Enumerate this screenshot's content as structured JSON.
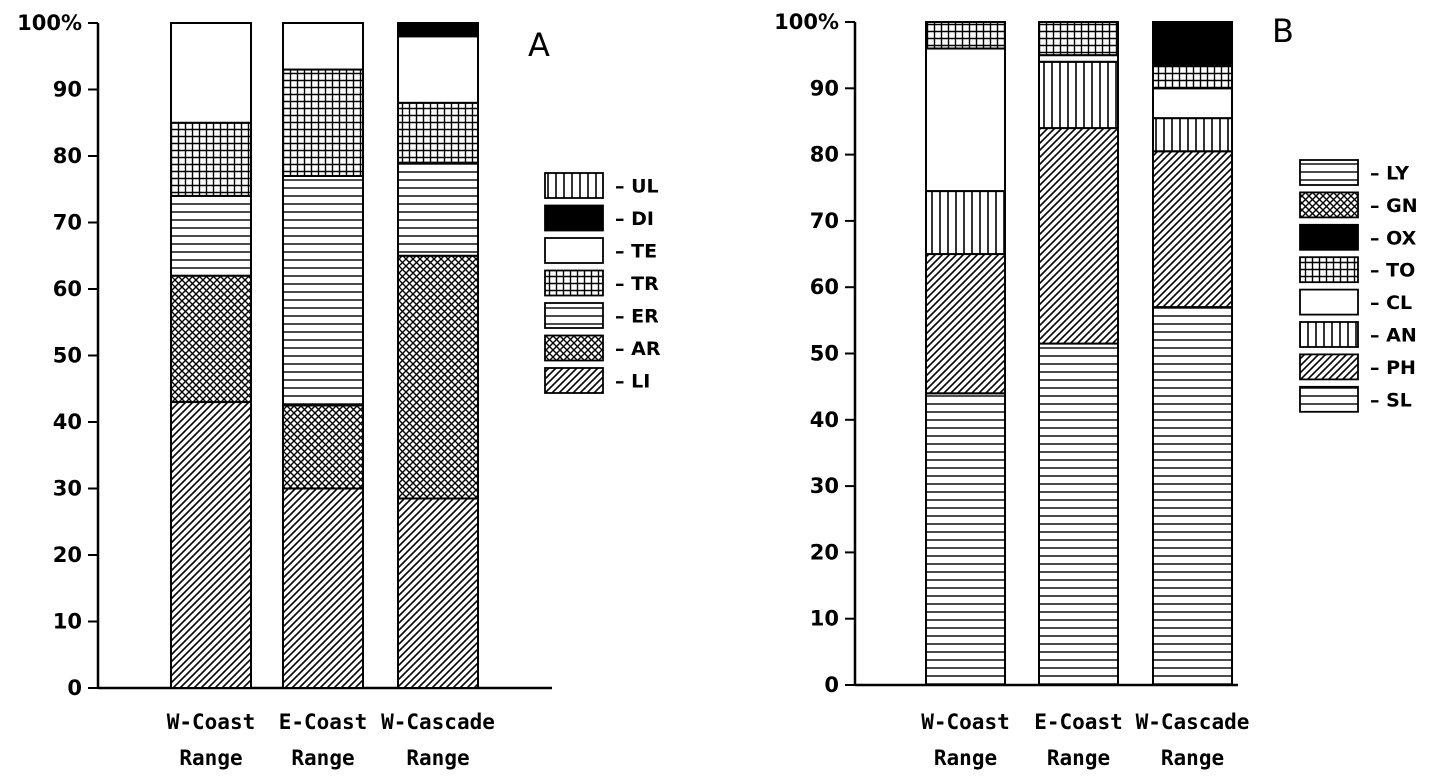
{
  "chart_data": [
    {
      "type": "bar",
      "stacked": true,
      "panel_label": "A",
      "title": "",
      "xlabel": "",
      "ylabel": "",
      "ylim": [
        0,
        100
      ],
      "yticks": [
        "0",
        "10",
        "20",
        "30",
        "40",
        "50",
        "60",
        "70",
        "80",
        "90",
        "100%"
      ],
      "categories": [
        {
          "line1": "W-Coast",
          "line2": "Range"
        },
        {
          "line1": "E-Coast",
          "line2": "Range"
        },
        {
          "line1": "W-Cascade",
          "line2": "Range"
        }
      ],
      "series": [
        {
          "name": "LI",
          "pattern": "diag",
          "values": [
            43,
            30,
            28.5
          ]
        },
        {
          "name": "AR",
          "pattern": "cross",
          "values": [
            19,
            12.5,
            36.5
          ]
        },
        {
          "name": "ER",
          "pattern": "horiz",
          "values": [
            12,
            34.5,
            14
          ]
        },
        {
          "name": "TR",
          "pattern": "grid",
          "values": [
            11,
            16,
            9
          ]
        },
        {
          "name": "TE",
          "pattern": "white",
          "values": [
            15,
            7,
            10
          ]
        },
        {
          "name": "DI",
          "pattern": "black",
          "values": [
            0,
            0,
            2
          ]
        },
        {
          "name": "UL",
          "pattern": "vert",
          "values": [
            0,
            0,
            0
          ]
        }
      ],
      "legend_order": [
        "UL",
        "DI",
        "TE",
        "TR",
        "ER",
        "AR",
        "LI"
      ],
      "legend_position": "right"
    },
    {
      "type": "bar",
      "stacked": true,
      "panel_label": "B",
      "title": "",
      "xlabel": "",
      "ylabel": "",
      "ylim": [
        0,
        100
      ],
      "yticks": [
        "0",
        "10",
        "20",
        "30",
        "40",
        "50",
        "60",
        "70",
        "80",
        "90",
        "100%"
      ],
      "categories": [
        {
          "line1": "W-Coast",
          "line2": "Range"
        },
        {
          "line1": "E-Coast",
          "line2": "Range"
        },
        {
          "line1": "W-Cascade",
          "line2": "Range"
        }
      ],
      "series": [
        {
          "name": "SL",
          "pattern": "horiz",
          "values": [
            44,
            51.5,
            57
          ]
        },
        {
          "name": "PH",
          "pattern": "diag",
          "values": [
            21,
            32.5,
            23.5
          ]
        },
        {
          "name": "AN",
          "pattern": "vert",
          "values": [
            9.5,
            10,
            5
          ]
        },
        {
          "name": "CL",
          "pattern": "white",
          "values": [
            21.5,
            1,
            4.5
          ]
        },
        {
          "name": "TO",
          "pattern": "grid",
          "values": [
            4,
            5,
            3.5
          ]
        },
        {
          "name": "OX",
          "pattern": "black",
          "values": [
            0,
            0,
            6.5
          ]
        },
        {
          "name": "GN",
          "pattern": "cross",
          "values": [
            0,
            0,
            0
          ]
        },
        {
          "name": "LY",
          "pattern": "horiz",
          "values": [
            0,
            0,
            0
          ]
        }
      ],
      "legend_order": [
        "LY",
        "GN",
        "OX",
        "TO",
        "CL",
        "AN",
        "PH",
        "SL"
      ],
      "legend_position": "right"
    }
  ]
}
